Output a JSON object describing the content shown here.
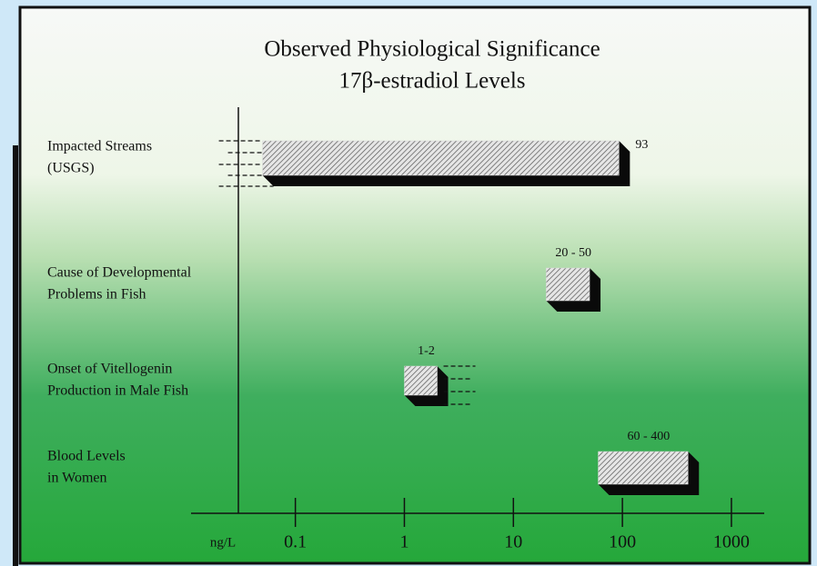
{
  "chart_data": {
    "type": "range_bar",
    "title": [
      "Observed Physiological Significance",
      "17β-estradiol Levels"
    ],
    "categories": [
      [
        "Impacted Streams",
        "(USGS)"
      ],
      [
        "Cause of Developmental",
        "Problems in Fish"
      ],
      [
        "Onset of Vitellogenin",
        "Production in Male Fish"
      ],
      [
        "Blood Levels",
        "in Women"
      ]
    ],
    "low": [
      0.05,
      20,
      1,
      60
    ],
    "high": [
      93,
      50,
      2,
      400
    ],
    "value_labels": [
      "93",
      "20 - 50",
      "1-2",
      "60 - 400"
    ],
    "x_label": "ng/L",
    "xscale": "log",
    "xlim": [
      0.03,
      2000
    ],
    "xticks": [
      0.1,
      1,
      10,
      100,
      1000
    ],
    "color": "#d8d8d8"
  }
}
